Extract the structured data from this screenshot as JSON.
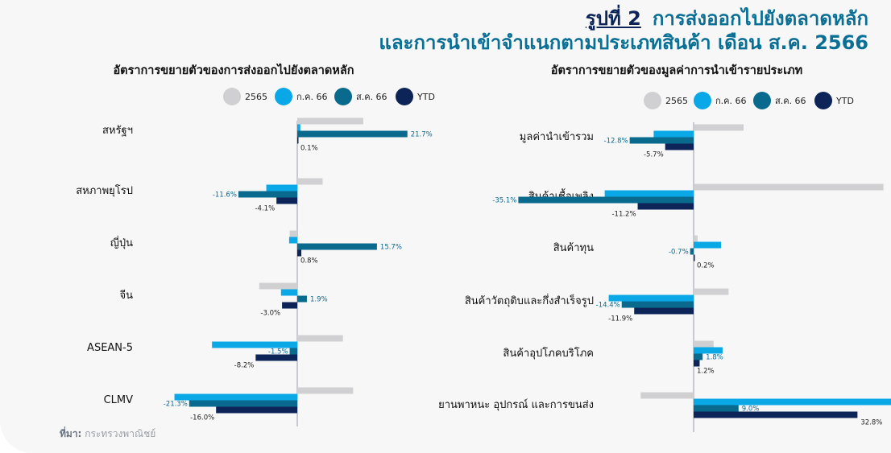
{
  "header": {
    "figure_label": "รูปที่ 2",
    "title_line1": "การส่งออกไปยังตลาดหลัก",
    "title_line2": "และการนำเข้าจำแนกตามประเภทสินค้า เดือน ส.ค. 2566"
  },
  "source": {
    "label": "ที่มา:",
    "text": "กระทรวงพาณิชย์"
  },
  "colors": {
    "s2565": "#d0d0d2",
    "jul66": "#0aa8e6",
    "aug66": "#0a6a8e",
    "ytd": "#0c2457"
  },
  "chart_data": [
    {
      "type": "bar",
      "orientation": "horizontal",
      "title": "อัตราการขยายตัวของการส่งออกไปยังตลาดหลัก",
      "legend_position": "top",
      "categories": [
        "สหรัฐฯ",
        "สหภาพยุโรป",
        "ญี่ปุ่น",
        "จีน",
        "ASEAN-5",
        "CLMV"
      ],
      "series": [
        {
          "name": "2565",
          "values": [
            13.0,
            5.0,
            -1.5,
            -7.5,
            9.0,
            11.0
          ]
        },
        {
          "name": "ก.ค. 66",
          "values": [
            0.6,
            -6.1,
            -1.6,
            -3.2,
            -16.8,
            -24.2
          ]
        },
        {
          "name": "ส.ค. 66",
          "values": [
            21.7,
            -11.6,
            15.7,
            1.9,
            -1.5,
            -21.3
          ]
        },
        {
          "name": "YTD",
          "values": [
            0.1,
            -4.1,
            0.8,
            -3.0,
            -8.2,
            -16.0
          ]
        }
      ],
      "labels": [
        [
          null,
          null,
          null,
          null,
          null,
          null
        ],
        [
          null,
          null,
          null,
          null,
          null,
          null
        ],
        [
          "21.7%",
          "-11.6%",
          "15.7%",
          "1.9%",
          "-1.5%",
          "-21.3%"
        ],
        [
          "0.1%",
          "-4.1%",
          "0.8%",
          "-3.0%",
          "-8.2%",
          "-16.0%"
        ]
      ]
    },
    {
      "type": "bar",
      "orientation": "horizontal",
      "title": "อัตราการขยายตัวของมูลค่าการนำเข้ารายประเภท",
      "legend_position": "top",
      "categories": [
        "มูลค่านำเข้ารวม",
        "สินค้าเชื้อเพลิง",
        "สินค้าทุน",
        "สินค้าวัตถุดิบและกึ่งสำเร็จรูป",
        "สินค้าอุปโภคบริโภค",
        "ยานพาหนะ อุปกรณ์ และการขนส่ง"
      ],
      "series": [
        {
          "name": "2565",
          "values": [
            10.0,
            38.0,
            0.8,
            7.0,
            4.0,
            -10.6
          ]
        },
        {
          "name": "ก.ค. 66",
          "values": [
            -8.0,
            -17.8,
            5.5,
            -17.0,
            5.8,
            66.0
          ]
        },
        {
          "name": "ส.ค. 66",
          "values": [
            -12.8,
            -35.1,
            -0.7,
            -14.4,
            1.8,
            9.0
          ]
        },
        {
          "name": "YTD",
          "values": [
            -5.7,
            -11.2,
            0.2,
            -11.9,
            1.2,
            32.8
          ]
        }
      ],
      "labels": [
        [
          null,
          null,
          null,
          null,
          null,
          null
        ],
        [
          null,
          null,
          null,
          null,
          null,
          null
        ],
        [
          "-12.8%",
          "-35.1%",
          "-0.7%",
          "-14.4%",
          "1.8%",
          "9.0%"
        ],
        [
          "-5.7%",
          "-11.2%",
          "0.2%",
          "-11.9%",
          "1.2%",
          "32.8%"
        ]
      ]
    }
  ]
}
